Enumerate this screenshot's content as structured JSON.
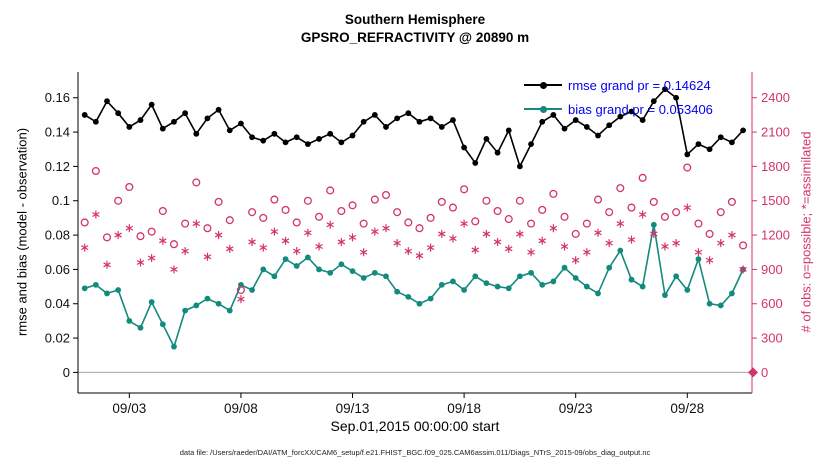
{
  "title": {
    "line1": "Southern Hemisphere",
    "line2": "GPSRO_REFRACTIVITY @ 20890 m"
  },
  "axes": {
    "left_label": "rmse and bias (model - observation)",
    "right_label": "# of obs: o=possible; *=assimilated",
    "x_label": "Sep.01,2015 00:00:00 start",
    "left_ticks": {
      "values": [
        0,
        0.02,
        0.04,
        0.06,
        0.08,
        0.1,
        0.12,
        0.14,
        0.16
      ],
      "labels": [
        "0",
        "0.02",
        "0.04",
        "0.06",
        "0.08",
        "0.1",
        "0.12",
        "0.14",
        "0.16"
      ]
    },
    "right_ticks": {
      "values": [
        0,
        300,
        600,
        900,
        1200,
        1500,
        1800,
        2100,
        2400
      ],
      "labels": [
        "0",
        "300",
        "600",
        "900",
        "1200",
        "1500",
        "1800",
        "2100",
        "2400"
      ]
    },
    "x_ticks": {
      "values": [
        3,
        8,
        13,
        18,
        23,
        28
      ],
      "labels": [
        "09/03",
        "09/08",
        "09/13",
        "09/18",
        "09/23",
        "09/28"
      ]
    }
  },
  "legend": [
    {
      "label": "rmse grand pr = 0.14624",
      "series": "rmse"
    },
    {
      "label": "bias grand pr = 0.053406",
      "series": "bias"
    }
  ],
  "caption": "data file: /Users/raeder/DAI/ATM_forcXX/CAM6_setup/f.e21.FHIST_BGC.f09_025.CAM6assim.011/Diags_NTrS_2015-09/obs_diag_output.nc",
  "colors": {
    "rmse": "#000000",
    "bias": "#128a7d",
    "obs": "#d4326e",
    "legend_text": "#0000ee",
    "zero_line": "#b3b3b3",
    "axis": "#000000"
  },
  "chart_data": {
    "type": "line",
    "title": "Southern Hemisphere / GPSRO_REFRACTIVITY @ 20890 m",
    "xlabel": "Sep.01,2015 00:00:00 start",
    "ylabel_left": "rmse and bias (model - observation)",
    "ylabel_right": "# of obs: o=possible; *=assimilated",
    "xlim": [
      0.7,
      30.9
    ],
    "left_ylim": [
      -0.012,
      0.175
    ],
    "right_ylim": [
      -180,
      2625
    ],
    "grid": false,
    "legend_position": "top-right",
    "rmse_grand_mean": 0.14624,
    "bias_grand_mean": 0.053406,
    "x_days": [
      1,
      1.5,
      2,
      2.5,
      3,
      3.5,
      4,
      4.5,
      5,
      5.5,
      6,
      6.5,
      7,
      7.5,
      8,
      8.5,
      9,
      9.5,
      10,
      10.5,
      11,
      11.5,
      12,
      12.5,
      13,
      13.5,
      14,
      14.5,
      15,
      15.5,
      16,
      16.5,
      17,
      17.5,
      18,
      18.5,
      19,
      19.5,
      20,
      20.5,
      21,
      21.5,
      22,
      22.5,
      23,
      23.5,
      24,
      24.5,
      25,
      25.5,
      26,
      26.5,
      27,
      27.5,
      28,
      28.5,
      29,
      29.5,
      30,
      30.5
    ],
    "series": [
      {
        "name": "rmse",
        "axis": "left",
        "marker": "filled-circle",
        "line": true,
        "values": [
          0.15,
          0.146,
          0.158,
          0.151,
          0.143,
          0.147,
          0.156,
          0.142,
          0.146,
          0.151,
          0.139,
          0.148,
          0.153,
          0.141,
          0.145,
          0.137,
          0.135,
          0.139,
          0.134,
          0.137,
          0.133,
          0.136,
          0.139,
          0.134,
          0.138,
          0.146,
          0.15,
          0.143,
          0.148,
          0.151,
          0.146,
          0.148,
          0.143,
          0.147,
          0.131,
          0.122,
          0.136,
          0.128,
          0.141,
          0.12,
          0.133,
          0.146,
          0.15,
          0.142,
          0.147,
          0.143,
          0.138,
          0.144,
          0.149,
          0.152,
          0.147,
          0.158,
          0.165,
          0.16,
          0.127,
          0.133,
          0.13,
          0.137,
          0.134,
          0.141
        ]
      },
      {
        "name": "bias",
        "axis": "left",
        "marker": "filled-circle",
        "line": true,
        "values": [
          0.049,
          0.051,
          0.046,
          0.048,
          0.03,
          0.026,
          0.041,
          0.028,
          0.015,
          0.036,
          0.039,
          0.043,
          0.04,
          0.036,
          0.051,
          0.048,
          0.06,
          0.056,
          0.066,
          0.062,
          0.067,
          0.06,
          0.058,
          0.063,
          0.059,
          0.055,
          0.058,
          0.056,
          0.047,
          0.044,
          0.04,
          0.043,
          0.051,
          0.053,
          0.048,
          0.056,
          0.052,
          0.05,
          0.049,
          0.056,
          0.058,
          0.051,
          0.053,
          0.061,
          0.055,
          0.05,
          0.046,
          0.061,
          0.071,
          0.054,
          0.05,
          0.086,
          0.045,
          0.056,
          0.048,
          0.066,
          0.04,
          0.039,
          0.046,
          0.06
        ]
      },
      {
        "name": "possible",
        "axis": "right",
        "marker": "open-circle",
        "line": false,
        "values": [
          1310,
          1760,
          1180,
          1500,
          1620,
          1190,
          1230,
          1410,
          1120,
          1300,
          1660,
          1260,
          1490,
          1330,
          720,
          1400,
          1350,
          1510,
          1420,
          1310,
          1500,
          1360,
          1590,
          1410,
          1460,
          1300,
          1510,
          1550,
          1400,
          1310,
          1260,
          1350,
          1490,
          1440,
          1600,
          1320,
          1500,
          1410,
          1340,
          1500,
          1300,
          1420,
          1560,
          1360,
          1210,
          1300,
          1510,
          1400,
          1610,
          1440,
          1700,
          1490,
          1360,
          1400,
          1790,
          1300,
          1210,
          1400,
          1490,
          1110
        ]
      },
      {
        "name": "assimilated",
        "axis": "right",
        "marker": "asterisk",
        "line": false,
        "values": [
          1090,
          1380,
          940,
          1200,
          1260,
          960,
          1000,
          1150,
          900,
          1060,
          1300,
          1010,
          1200,
          1080,
          640,
          1140,
          1090,
          1230,
          1150,
          1060,
          1220,
          1100,
          1290,
          1140,
          1180,
          1050,
          1230,
          1260,
          1130,
          1060,
          1020,
          1090,
          1210,
          1170,
          1300,
          1070,
          1210,
          1140,
          1080,
          1210,
          1050,
          1150,
          1260,
          1100,
          980,
          1050,
          1220,
          1130,
          1300,
          1160,
          1380,
          1210,
          1100,
          1130,
          1440,
          1050,
          980,
          1130,
          1200,
          900
        ]
      }
    ],
    "zero_marker": {
      "axis": "right",
      "value": 0,
      "shape": "diamond"
    }
  }
}
